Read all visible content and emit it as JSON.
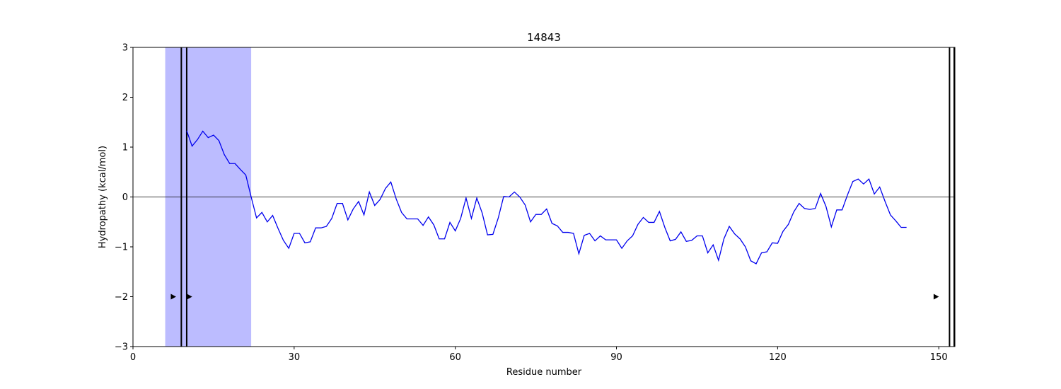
{
  "chart_data": {
    "type": "line",
    "title": "14843",
    "xlabel": "Residue number",
    "ylabel": "Hydropathy (kcal/mol)",
    "xlim": [
      0,
      153
    ],
    "ylim": [
      -3,
      3
    ],
    "xticks": [
      0,
      30,
      60,
      90,
      120,
      150
    ],
    "yticks": [
      -3,
      -2,
      -1,
      0,
      1,
      2,
      3
    ],
    "zero_line": 0,
    "line_color": "#0000ee",
    "highlight_color": "#bcbcff",
    "highlight_region": [
      6,
      22
    ],
    "vertical_lines": [
      9,
      10,
      152,
      153
    ],
    "markers": [
      {
        "x": 7.5,
        "y": -2
      },
      {
        "x": 10.5,
        "y": -2
      },
      {
        "x": 149.5,
        "y": -2
      }
    ],
    "series": [
      {
        "x": [
          10,
          11,
          12,
          13,
          14,
          15,
          16,
          17,
          18,
          19,
          20,
          21,
          22,
          23,
          24,
          25,
          26,
          27,
          28,
          29,
          30,
          31,
          32,
          33,
          34,
          35,
          36,
          37,
          38,
          39,
          40,
          41,
          42,
          43,
          44,
          45,
          46,
          47,
          48,
          49,
          50,
          51,
          52,
          53,
          54,
          55,
          56,
          57,
          58,
          59,
          60,
          61,
          62,
          63,
          64,
          65,
          66,
          67,
          68,
          69,
          70,
          71,
          72,
          73,
          74,
          75,
          76,
          77,
          78,
          79,
          80,
          81,
          82,
          83,
          84,
          85,
          86,
          87,
          88,
          89,
          90,
          91,
          92,
          93,
          94,
          95,
          96,
          97,
          98,
          99,
          100,
          101,
          102,
          103,
          104,
          105,
          106,
          107,
          108,
          109,
          110,
          111,
          112,
          113,
          114,
          115,
          116,
          117,
          118,
          119,
          120,
          121,
          122,
          123,
          124,
          125,
          126,
          127,
          128,
          129,
          130,
          131,
          132,
          133,
          134,
          135,
          136,
          137,
          138,
          139,
          140,
          141,
          142,
          143,
          144
        ],
        "values": [
          1.33,
          1.02,
          1.15,
          1.32,
          1.19,
          1.24,
          1.13,
          0.85,
          0.67,
          0.67,
          0.55,
          0.44,
          0.0,
          -0.42,
          -0.31,
          -0.5,
          -0.37,
          -0.63,
          -0.87,
          -1.03,
          -0.73,
          -0.73,
          -0.92,
          -0.9,
          -0.62,
          -0.62,
          -0.59,
          -0.43,
          -0.13,
          -0.13,
          -0.46,
          -0.24,
          -0.09,
          -0.36,
          0.1,
          -0.17,
          -0.05,
          0.17,
          0.3,
          -0.04,
          -0.31,
          -0.44,
          -0.44,
          -0.44,
          -0.57,
          -0.4,
          -0.56,
          -0.84,
          -0.84,
          -0.51,
          -0.68,
          -0.43,
          -0.02,
          -0.43,
          -0.02,
          -0.32,
          -0.76,
          -0.75,
          -0.42,
          0.01,
          0.0,
          0.1,
          0.0,
          -0.16,
          -0.5,
          -0.35,
          -0.35,
          -0.24,
          -0.53,
          -0.58,
          -0.71,
          -0.71,
          -0.73,
          -1.14,
          -0.77,
          -0.73,
          -0.88,
          -0.78,
          -0.86,
          -0.86,
          -0.86,
          -1.03,
          -0.88,
          -0.78,
          -0.55,
          -0.41,
          -0.51,
          -0.51,
          -0.29,
          -0.61,
          -0.88,
          -0.85,
          -0.7,
          -0.89,
          -0.87,
          -0.78,
          -0.78,
          -1.12,
          -0.96,
          -1.27,
          -0.84,
          -0.59,
          -0.74,
          -0.84,
          -1.0,
          -1.28,
          -1.34,
          -1.12,
          -1.1,
          -0.92,
          -0.93,
          -0.69,
          -0.55,
          -0.3,
          -0.13,
          -0.23,
          -0.25,
          -0.23,
          0.07,
          -0.19,
          -0.6,
          -0.26,
          -0.26,
          0.04,
          0.31,
          0.36,
          0.26,
          0.36,
          0.06,
          0.2,
          -0.09,
          -0.36,
          -0.48,
          -0.61,
          -0.61
        ]
      }
    ]
  }
}
